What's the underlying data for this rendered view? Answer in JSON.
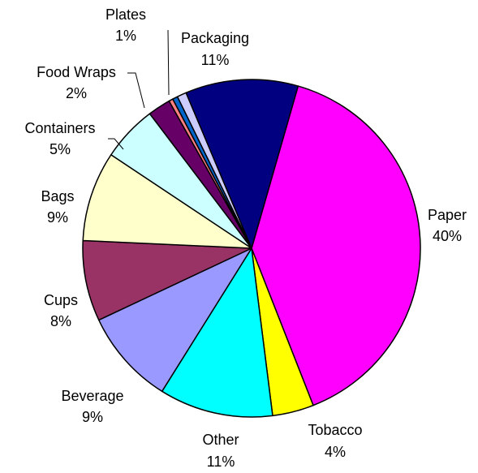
{
  "chart_data": {
    "type": "pie",
    "title": "",
    "slices": [
      {
        "name": "Paper",
        "pct_label": "40%",
        "value": 40.0,
        "color": "#ff00ff"
      },
      {
        "name": "Tobacco",
        "pct_label": "4%",
        "value": 4.0,
        "color": "#ffff00"
      },
      {
        "name": "Other",
        "pct_label": "11%",
        "value": 11.0,
        "color": "#00ffff"
      },
      {
        "name": "Beverage",
        "pct_label": "9%",
        "value": 9.2,
        "color": "#9999ff"
      },
      {
        "name": "Cups",
        "pct_label": "8%",
        "value": 7.8,
        "color": "#993366"
      },
      {
        "name": "Bags",
        "pct_label": "9%",
        "value": 8.7,
        "color": "#ffffcc"
      },
      {
        "name": "Containers",
        "pct_label": "5%",
        "value": 5.4,
        "color": "#ccffff"
      },
      {
        "name": "Food Wraps",
        "pct_label": "2%",
        "value": 2.2,
        "color": "#660066"
      },
      {
        "name": "Food Wraps",
        "pct_label": "",
        "value": 0.4,
        "color": "#ff8080"
      },
      {
        "name": "Food Wraps",
        "pct_label": "",
        "value": 0.5,
        "color": "#0066cc"
      },
      {
        "name": "Plates",
        "pct_label": "1%",
        "value": 0.9,
        "color": "#ccccff"
      },
      {
        "name": "Packaging",
        "pct_label": "11%",
        "value": 10.9,
        "color": "#000080"
      }
    ]
  }
}
